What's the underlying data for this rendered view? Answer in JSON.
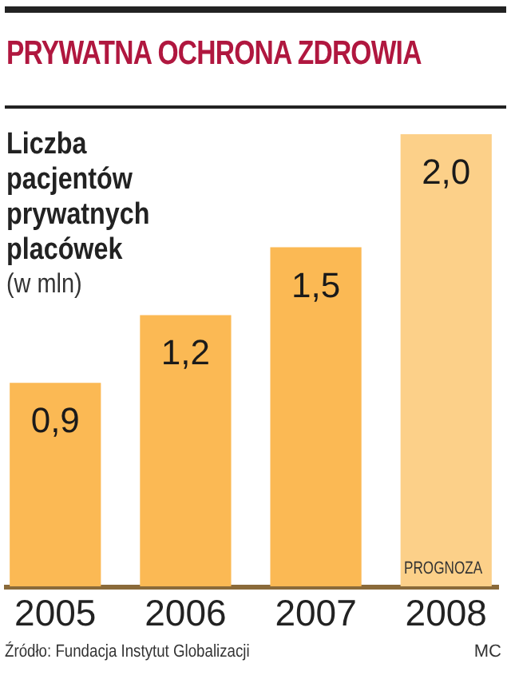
{
  "chart_data": {
    "type": "bar",
    "title": "PRYWATNA OCHRONA ZDROWIA",
    "subtitle": "Liczba pacjentów prywatnych placówek",
    "ylabel": "(w mln)",
    "categories": [
      "2005",
      "2006",
      "2007",
      "2008"
    ],
    "values": [
      0.9,
      1.2,
      1.5,
      2.0
    ],
    "value_labels": [
      "0,9",
      "1,2",
      "1,5",
      "2,0"
    ],
    "colors": [
      "#fbb954",
      "#fbb954",
      "#fbb954",
      "#fcd089"
    ],
    "annotations": [
      "PROGNOZA",
      "Źródło: Fundacja Instytut Globalizacji",
      "MC"
    ]
  }
}
